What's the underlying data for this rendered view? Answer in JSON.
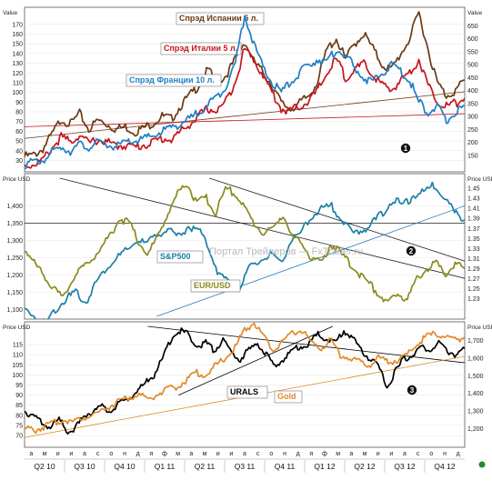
{
  "watermark": "Портал Трейдеров — FxTrader.ru",
  "chart_data": [
    {
      "type": "line",
      "panel": "top",
      "left_axis_label": "Value",
      "right_axis_label": "Value",
      "left_ticks": [
        30,
        40,
        50,
        60,
        70,
        80,
        90,
        100,
        110,
        120,
        130,
        140,
        150,
        160,
        170
      ],
      "right_ticks": [
        150,
        200,
        250,
        300,
        350,
        400,
        450,
        500,
        550,
        600,
        650
      ],
      "left_ylim": [
        22,
        182
      ],
      "right_ylim": [
        100,
        700
      ],
      "marker": "1",
      "series": [
        {
          "name": "Спрэд Испании 5 л.",
          "color": "#6b3a14",
          "axis": "right",
          "values": [
            145,
            150,
            175,
            230,
            290,
            270,
            310,
            250,
            285,
            270,
            250,
            260,
            240,
            255,
            275,
            300,
            290,
            340,
            380,
            420,
            480,
            430,
            460,
            520,
            590,
            510,
            470,
            420,
            350,
            330,
            350,
            380,
            440,
            560,
            600,
            520,
            580,
            620,
            560,
            500,
            480,
            540,
            600,
            700,
            560,
            430,
            380,
            400,
            440
          ]
        },
        {
          "name": "Спрэд Италии 5 л.",
          "color": "#c8141e",
          "axis": "right",
          "values": [
            110,
            115,
            130,
            180,
            220,
            200,
            230,
            195,
            210,
            200,
            185,
            190,
            180,
            190,
            200,
            215,
            210,
            240,
            270,
            300,
            330,
            320,
            360,
            440,
            560,
            520,
            460,
            390,
            330,
            320,
            340,
            360,
            400,
            470,
            520,
            450,
            480,
            500,
            460,
            420,
            400,
            440,
            470,
            520,
            420,
            360,
            340,
            350,
            370
          ]
        },
        {
          "name": "Спрэд Франции 10 л.",
          "color": "#1f7fc4",
          "axis": "left",
          "values": [
            26,
            28,
            30,
            38,
            44,
            40,
            46,
            44,
            48,
            46,
            44,
            48,
            50,
            52,
            55,
            60,
            64,
            68,
            72,
            80,
            88,
            95,
            108,
            130,
            180,
            150,
            125,
            110,
            100,
            110,
            120,
            128,
            135,
            130,
            145,
            138,
            125,
            115,
            110,
            120,
            128,
            122,
            112,
            90,
            80,
            85,
            70,
            80,
            86
          ]
        }
      ],
      "trendlines": [
        {
          "color": "#6b3a14",
          "axis": "right",
          "from": [
            0.0,
            215
          ],
          "to": [
            1.0,
            395
          ]
        },
        {
          "color": "#c8141e",
          "axis": "right",
          "from": [
            0.0,
            260
          ],
          "to": [
            1.0,
            310
          ]
        }
      ]
    },
    {
      "type": "line",
      "panel": "middle",
      "left_axis_label": "Price USD",
      "right_axis_label": "Price USD",
      "left_ticks": [
        1100,
        1150,
        1200,
        1250,
        1300,
        1350,
        1400
      ],
      "left_tick_labels": [
        "1,100",
        "1,150",
        "1,200",
        "1,250",
        "1,300",
        "1,350",
        "1,400"
      ],
      "right_ticks": [
        1.23,
        1.25,
        1.27,
        1.29,
        1.31,
        1.33,
        1.35,
        1.37,
        1.39,
        1.41,
        1.43,
        1.45
      ],
      "left_ylim": [
        1080,
        1480
      ],
      "right_ylim": [
        1.195,
        1.47
      ],
      "marker": "2",
      "series": [
        {
          "name": "S&P500",
          "color": "#1b7fa6",
          "axis": "left",
          "values": [
            1100,
            1080,
            1060,
            1100,
            1130,
            1150,
            1120,
            1180,
            1220,
            1250,
            1270,
            1300,
            1290,
            1320,
            1330,
            1310,
            1340,
            1330,
            1280,
            1200,
            1180,
            1160,
            1220,
            1240,
            1260,
            1230,
            1300,
            1320,
            1370,
            1390,
            1400,
            1360,
            1320,
            1330,
            1350,
            1380,
            1420,
            1400,
            1430,
            1440,
            1460,
            1430,
            1380,
            1360
          ]
        },
        {
          "name": "EUR/USD",
          "color": "#8a8a1e",
          "axis": "right",
          "values": [
            1.33,
            1.3,
            1.28,
            1.25,
            1.23,
            1.27,
            1.29,
            1.31,
            1.33,
            1.36,
            1.39,
            1.38,
            1.34,
            1.32,
            1.36,
            1.4,
            1.44,
            1.46,
            1.42,
            1.43,
            1.4,
            1.45,
            1.44,
            1.41,
            1.38,
            1.36,
            1.37,
            1.4,
            1.35,
            1.34,
            1.31,
            1.3,
            1.34,
            1.32,
            1.3,
            1.28,
            1.26,
            1.24,
            1.22,
            1.24,
            1.23,
            1.27,
            1.29,
            1.3,
            1.28,
            1.3,
            1.29
          ]
        }
      ],
      "trendlines": [
        {
          "color": "#222222",
          "axis": "left",
          "from": [
            0.08,
            1480
          ],
          "to": [
            1.0,
            1190
          ]
        },
        {
          "color": "#222222",
          "axis": "left",
          "from": [
            0.42,
            1480
          ],
          "to": [
            1.0,
            1240
          ]
        },
        {
          "color": "#1f7fc4",
          "axis": "left",
          "from": [
            0.3,
            1080
          ],
          "to": [
            1.0,
            1400
          ]
        }
      ],
      "hline": {
        "axis": "left",
        "value": 1350
      }
    },
    {
      "type": "line",
      "panel": "bottom",
      "left_axis_label": "Price USD",
      "right_axis_label": "Price USD Ozs",
      "left_ticks": [
        70,
        75,
        80,
        85,
        90,
        95,
        100,
        105,
        110,
        115
      ],
      "right_ticks": [
        1200,
        1300,
        1400,
        1500,
        1600,
        1700
      ],
      "right_tick_labels": [
        "1,200",
        "1,300",
        "1,400",
        "1,500",
        "1,600",
        "1,700"
      ],
      "left_ylim": [
        66,
        124
      ],
      "right_ylim": [
        1115,
        1780
      ],
      "marker": "3",
      "series": [
        {
          "name": "URALS",
          "color": "#000000",
          "axis": "left",
          "values": [
            82,
            80,
            76,
            74,
            78,
            72,
            74,
            80,
            82,
            84,
            82,
            86,
            88,
            92,
            96,
            100,
            108,
            118,
            122,
            120,
            114,
            116,
            112,
            118,
            110,
            108,
            112,
            116,
            110,
            104,
            108,
            112,
            114,
            116,
            120,
            118,
            116,
            122,
            118,
            112,
            108,
            104,
            94,
            102,
            108,
            110,
            114,
            112,
            116,
            112,
            110,
            113
          ]
        },
        {
          "name": "Gold",
          "color": "#e08a28",
          "axis": "right",
          "values": [
            1200,
            1190,
            1210,
            1230,
            1250,
            1240,
            1260,
            1280,
            1300,
            1330,
            1360,
            1380,
            1390,
            1370,
            1400,
            1420,
            1440,
            1480,
            1520,
            1500,
            1560,
            1600,
            1660,
            1760,
            1800,
            1720,
            1640,
            1700,
            1740,
            1760,
            1680,
            1660,
            1700,
            1620,
            1600,
            1580,
            1560,
            1600,
            1580,
            1590,
            1620,
            1680,
            1720,
            1740,
            1720,
            1700,
            1720
          ]
        }
      ],
      "trendlines": [
        {
          "color": "#000000",
          "axis": "left",
          "from": [
            0.28,
            124
          ],
          "to": [
            1.0,
            106
          ]
        },
        {
          "color": "#e08a28",
          "axis": "right",
          "from": [
            0.0,
            1150
          ],
          "to": [
            1.0,
            1610
          ]
        },
        {
          "color": "#000000",
          "axis": "left",
          "from": [
            0.35,
            90
          ],
          "to": [
            0.7,
            124
          ]
        }
      ]
    }
  ],
  "x_axis": {
    "months": [
      "а",
      "м",
      "и",
      "и",
      "а",
      "с",
      "о",
      "н",
      "д",
      "я",
      "ф",
      "м",
      "а",
      "м",
      "и",
      "и",
      "а",
      "с",
      "о",
      "н",
      "д",
      "я",
      "ф",
      "м",
      "а",
      "м",
      "и",
      "и",
      "а",
      "с",
      "о",
      "н",
      "д"
    ],
    "quarters": [
      "Q2 10",
      "Q3 10",
      "Q4 10",
      "Q1 11",
      "Q2 11",
      "Q3 11",
      "Q4 11",
      "Q1 12",
      "Q2 12",
      "Q3 12",
      "Q4 12"
    ]
  },
  "colors": {
    "spain": "#6b3a14",
    "italy": "#c8141e",
    "france": "#1f7fc4",
    "sp500": "#1b7fa6",
    "eurusd": "#8a8a1e",
    "urals": "#000000",
    "gold": "#e08a28"
  }
}
